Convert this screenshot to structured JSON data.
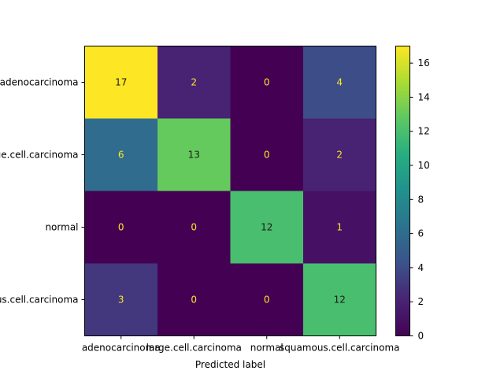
{
  "chart_data": {
    "type": "heatmap",
    "title": "",
    "xlabel": "Predicted label",
    "ylabel": "",
    "x_categories": [
      "adenocarcinoma",
      "large.cell.carcinoma",
      "normal",
      "squamous.cell.carcinoma"
    ],
    "y_categories": [
      "adenocarcinoma",
      "large.cell.carcinoma",
      "normal",
      "squamous.cell.carcinoma"
    ],
    "values": [
      [
        17,
        2,
        0,
        4
      ],
      [
        6,
        13,
        0,
        2
      ],
      [
        0,
        0,
        12,
        1
      ],
      [
        3,
        0,
        0,
        12
      ]
    ],
    "colormap": "viridis",
    "colorbar": {
      "range": [
        0,
        17
      ],
      "ticks": [
        0,
        2,
        4,
        6,
        8,
        10,
        12,
        14,
        16
      ]
    },
    "text_colors": {
      "on_dark": "#fde725",
      "on_light": "#1a1a1a"
    }
  }
}
